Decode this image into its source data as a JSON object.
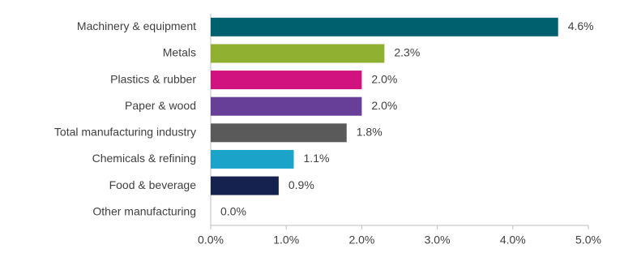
{
  "chart_data": {
    "type": "bar",
    "orientation": "horizontal",
    "categories": [
      "Machinery & equipment",
      "Metals",
      "Plastics & rubber",
      "Paper & wood",
      "Total manufacturing industry",
      "Chemicals & refining",
      "Food & beverage",
      "Other manufacturing"
    ],
    "values": [
      4.6,
      2.3,
      2.0,
      2.0,
      1.8,
      1.1,
      0.9,
      0.0
    ],
    "value_labels": [
      "4.6%",
      "2.3%",
      "2.0%",
      "2.0%",
      "1.8%",
      "1.1%",
      "0.9%",
      "0.0%"
    ],
    "colors": [
      "#00606e",
      "#8fb030",
      "#d0137f",
      "#673e98",
      "#5a5a5a",
      "#1ba3c9",
      "#15214f",
      "#3aa845"
    ],
    "xlim": [
      0,
      5
    ],
    "xticks": [
      {
        "value": 0,
        "label": "0.0%"
      },
      {
        "value": 1,
        "label": "1.0%"
      },
      {
        "value": 2,
        "label": "2.0%"
      },
      {
        "value": 3,
        "label": "3.0%"
      },
      {
        "value": 4,
        "label": "4.0%"
      },
      {
        "value": 5,
        "label": "5.0%"
      }
    ],
    "grid": false
  }
}
